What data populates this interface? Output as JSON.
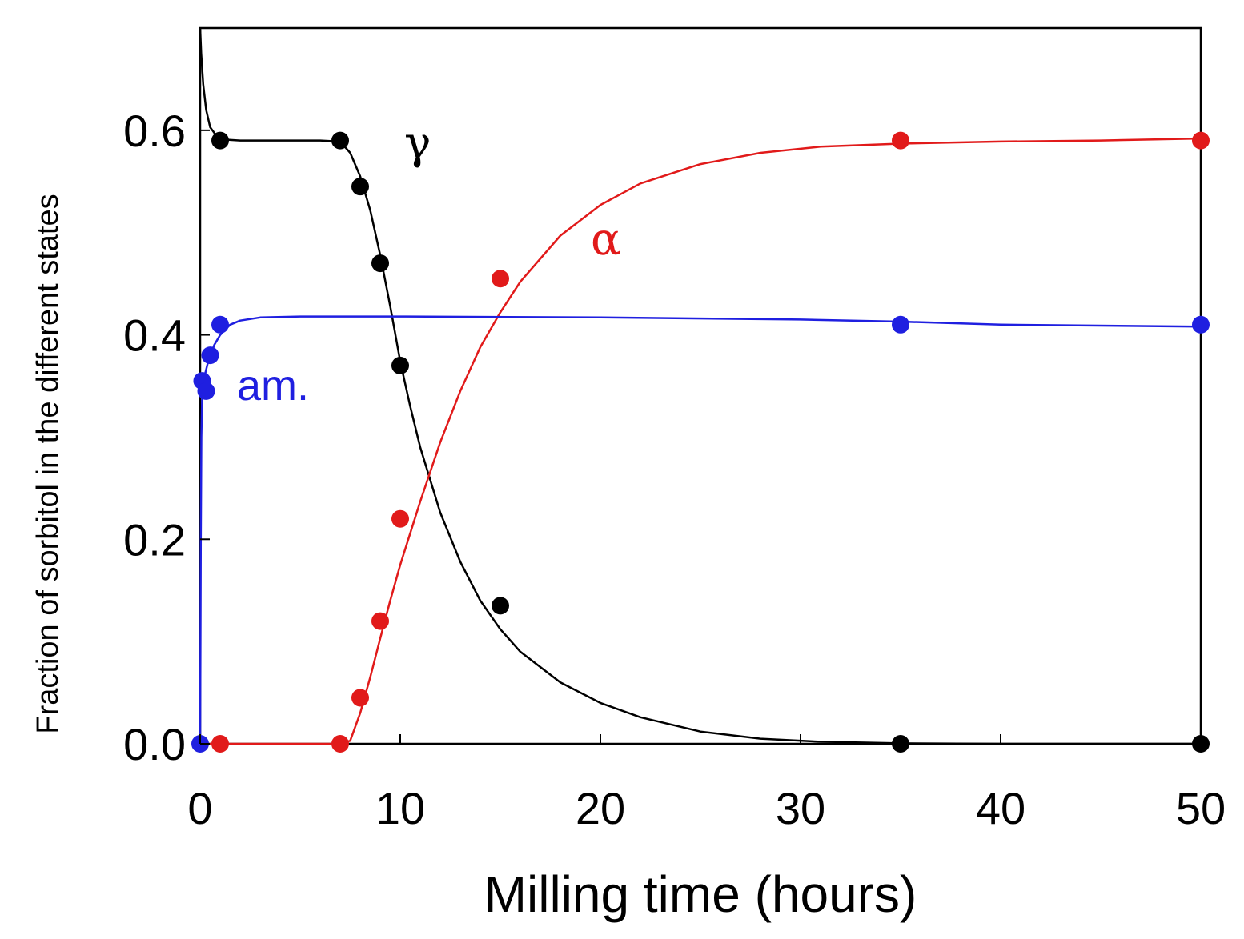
{
  "chart_data": {
    "type": "scatter",
    "title": "",
    "xlabel": "Milling time (hours)",
    "ylabel": "Fraction of sorbitol in the different states",
    "xlim": [
      0,
      50
    ],
    "ylim": [
      0,
      0.7
    ],
    "xticks": [
      0,
      10,
      20,
      30,
      40,
      50
    ],
    "yticks": [
      0.0,
      0.2,
      0.4,
      0.6
    ],
    "xtick_labels": [
      "0",
      "10",
      "20",
      "30",
      "40",
      "50"
    ],
    "ytick_labels": [
      "0.0",
      "0.2",
      "0.4",
      "0.6"
    ],
    "grid": false,
    "series": [
      {
        "name": "γ",
        "label": "γ",
        "color": "#000000",
        "points": [
          {
            "x": 1,
            "y": 0.59
          },
          {
            "x": 7,
            "y": 0.59
          },
          {
            "x": 8,
            "y": 0.545
          },
          {
            "x": 9,
            "y": 0.47
          },
          {
            "x": 10,
            "y": 0.37
          },
          {
            "x": 15,
            "y": 0.135
          },
          {
            "x": 35,
            "y": 0.0
          },
          {
            "x": 50,
            "y": 0.0
          }
        ],
        "fit": [
          [
            0,
            0.7
          ],
          [
            0.05,
            0.675
          ],
          [
            0.15,
            0.645
          ],
          [
            0.3,
            0.62
          ],
          [
            0.5,
            0.603
          ],
          [
            0.8,
            0.595
          ],
          [
            1.2,
            0.591
          ],
          [
            2,
            0.59
          ],
          [
            4,
            0.59
          ],
          [
            6,
            0.59
          ],
          [
            7,
            0.589
          ],
          [
            7.5,
            0.578
          ],
          [
            8,
            0.555
          ],
          [
            8.5,
            0.522
          ],
          [
            9,
            0.478
          ],
          [
            9.5,
            0.428
          ],
          [
            10,
            0.374
          ],
          [
            10.5,
            0.33
          ],
          [
            11,
            0.29
          ],
          [
            12,
            0.226
          ],
          [
            13,
            0.178
          ],
          [
            14,
            0.14
          ],
          [
            15,
            0.112
          ],
          [
            16,
            0.09
          ],
          [
            18,
            0.06
          ],
          [
            20,
            0.04
          ],
          [
            22,
            0.026
          ],
          [
            25,
            0.012
          ],
          [
            28,
            0.005
          ],
          [
            31,
            0.002
          ],
          [
            35,
            0.0005
          ],
          [
            40,
            0.0
          ],
          [
            50,
            0.0
          ]
        ]
      },
      {
        "name": "α",
        "label": "α",
        "color": "#e11a1a",
        "points": [
          {
            "x": 1,
            "y": 0.0
          },
          {
            "x": 7,
            "y": 0.0
          },
          {
            "x": 8,
            "y": 0.045
          },
          {
            "x": 9,
            "y": 0.12
          },
          {
            "x": 10,
            "y": 0.22
          },
          {
            "x": 15,
            "y": 0.455
          },
          {
            "x": 35,
            "y": 0.59
          },
          {
            "x": 50,
            "y": 0.59
          }
        ],
        "fit": [
          [
            0,
            0.0
          ],
          [
            7,
            0.0
          ],
          [
            7.5,
            0.003
          ],
          [
            8,
            0.03
          ],
          [
            8.5,
            0.065
          ],
          [
            9,
            0.103
          ],
          [
            9.5,
            0.14
          ],
          [
            10,
            0.175
          ],
          [
            11,
            0.237
          ],
          [
            12,
            0.295
          ],
          [
            13,
            0.345
          ],
          [
            14,
            0.388
          ],
          [
            15,
            0.422
          ],
          [
            16,
            0.452
          ],
          [
            18,
            0.497
          ],
          [
            20,
            0.527
          ],
          [
            22,
            0.548
          ],
          [
            25,
            0.567
          ],
          [
            28,
            0.578
          ],
          [
            31,
            0.584
          ],
          [
            35,
            0.587
          ],
          [
            40,
            0.589
          ],
          [
            45,
            0.59
          ],
          [
            50,
            0.592
          ]
        ]
      },
      {
        "name": "am.",
        "label": "am.",
        "color": "#1f1fe0",
        "points": [
          {
            "x": 0,
            "y": 0.0
          },
          {
            "x": 0.1,
            "y": 0.355
          },
          {
            "x": 0.3,
            "y": 0.345
          },
          {
            "x": 0.5,
            "y": 0.38
          },
          {
            "x": 1,
            "y": 0.41
          },
          {
            "x": 35,
            "y": 0.41
          },
          {
            "x": 50,
            "y": 0.41
          }
        ],
        "fit": [
          [
            0,
            0.0
          ],
          [
            0.03,
            0.2
          ],
          [
            0.06,
            0.3
          ],
          [
            0.1,
            0.34
          ],
          [
            0.2,
            0.358
          ],
          [
            0.4,
            0.374
          ],
          [
            0.7,
            0.39
          ],
          [
            1,
            0.4
          ],
          [
            1.5,
            0.41
          ],
          [
            2,
            0.414
          ],
          [
            3,
            0.417
          ],
          [
            5,
            0.418
          ],
          [
            10,
            0.418
          ],
          [
            20,
            0.417
          ],
          [
            30,
            0.415
          ],
          [
            35,
            0.413
          ],
          [
            40,
            0.41
          ],
          [
            50,
            0.408
          ]
        ]
      }
    ]
  }
}
